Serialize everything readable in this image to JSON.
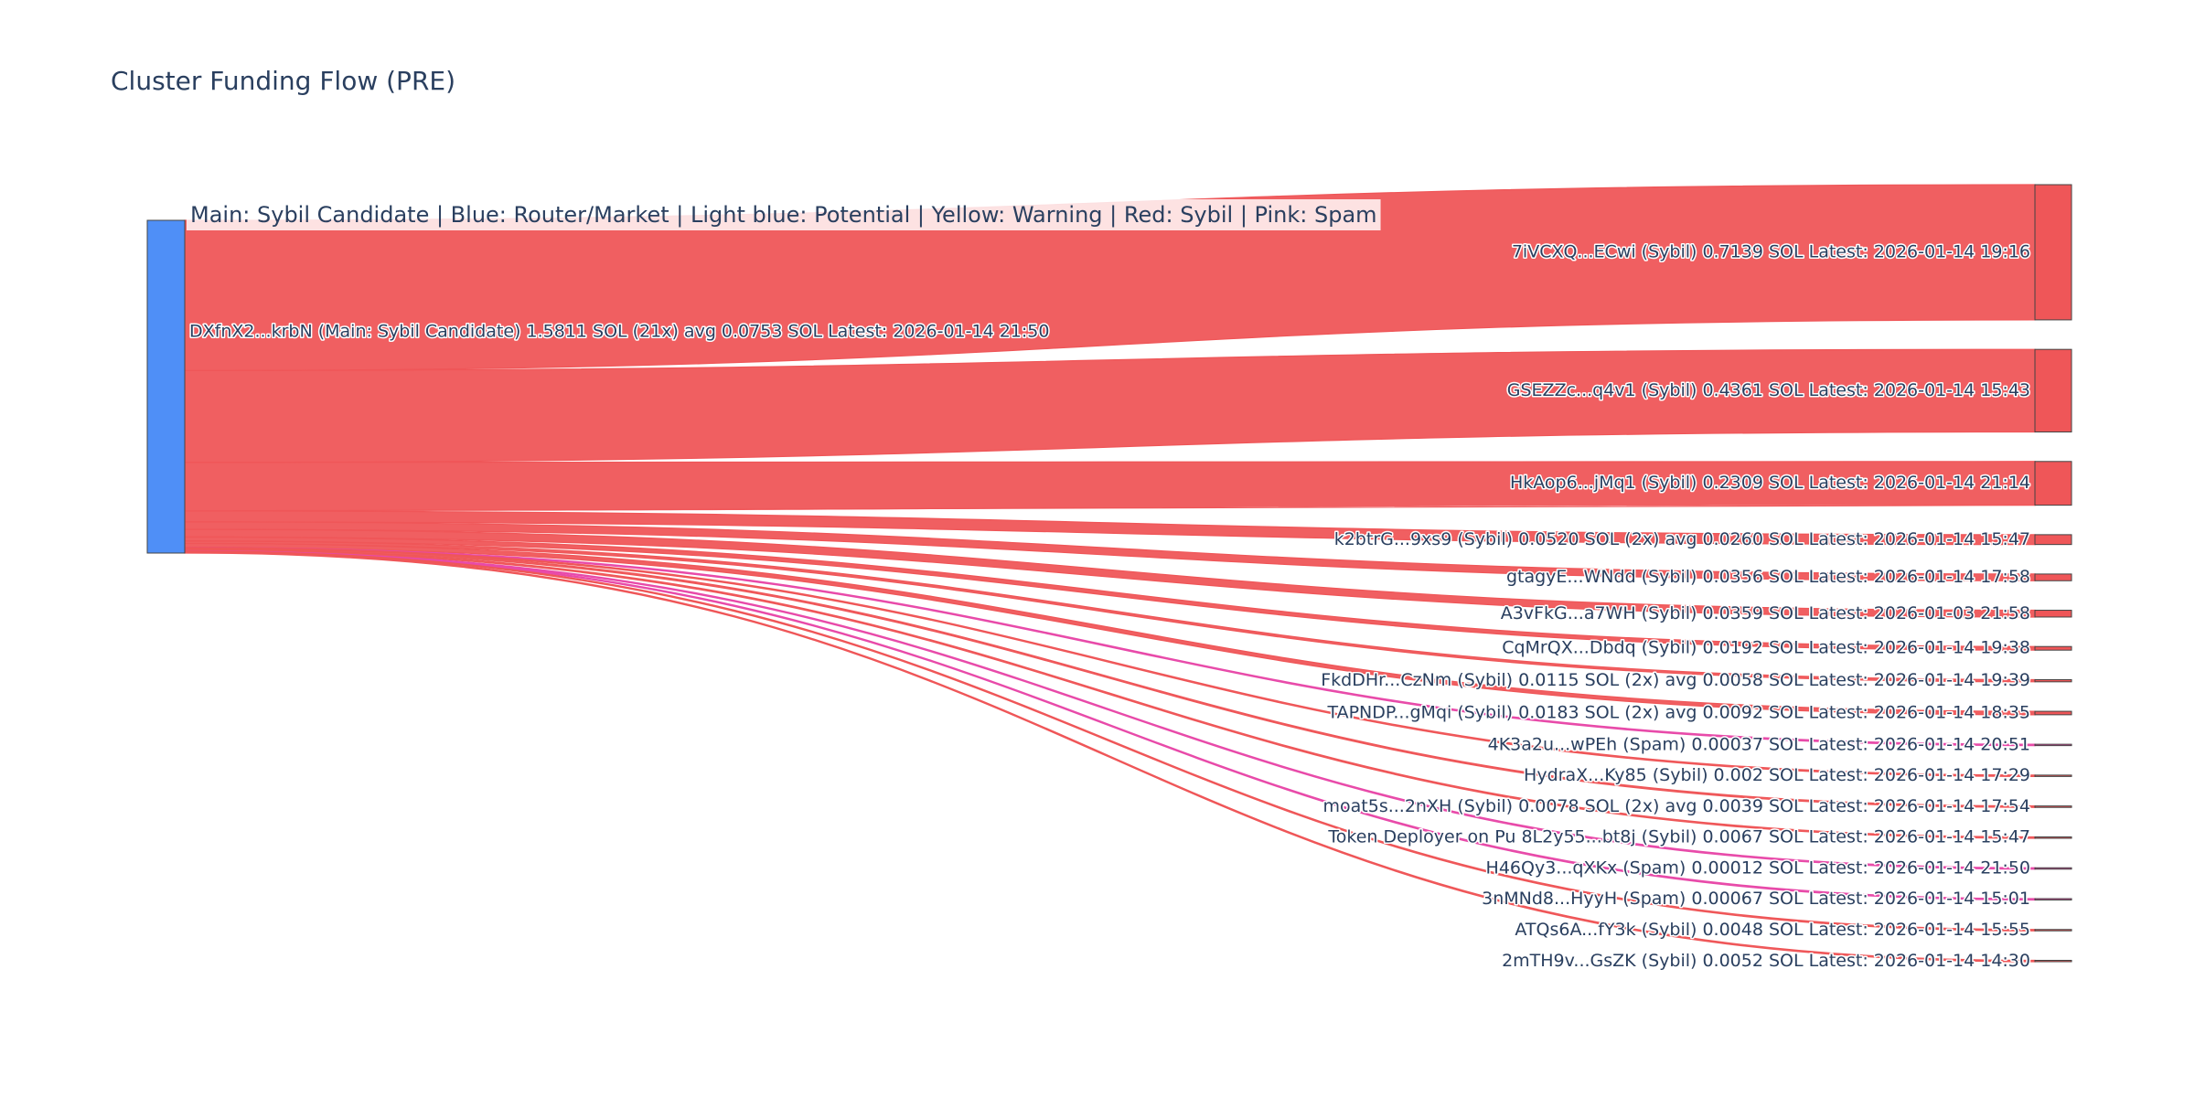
{
  "chart_data": {
    "type": "sankey",
    "title": "Cluster Funding Flow (PRE)",
    "annotation": "Main: Sybil Candidate  |  Blue: Router/Market | Light blue: Potential | Yellow: Warning | Red: Sybil | Pink: Spam",
    "source": {
      "label": "DXfnX2...krbN (Main: Sybil Candidate) 1.5811 SOL (21x) avg 0.0753 SOL Latest: 2026-01-14 21:50",
      "value": 1.5811,
      "color": "#4f8ff7"
    },
    "category_colors": {
      "Sybil": "#ef5658",
      "Spam": "#e84aa9"
    },
    "targets": [
      {
        "label": "7iVCXQ...ECwi (Sybil) 0.7139 SOL Latest: 2026-01-14 19:16",
        "value": 0.7139,
        "category": "Sybil"
      },
      {
        "label": "GSEZZc...q4v1 (Sybil) 0.4361 SOL Latest: 2026-01-14 15:43",
        "value": 0.4361,
        "category": "Sybil"
      },
      {
        "label": "HkAop6...jMq1 (Sybil) 0.2309 SOL Latest: 2026-01-14 21:14",
        "value": 0.2309,
        "category": "Sybil"
      },
      {
        "label": "k2btrG...9xs9 (Sybil) 0.0520 SOL (2x) avg 0.0260 SOL Latest: 2026-01-14 15:47",
        "value": 0.052,
        "category": "Sybil"
      },
      {
        "label": "gtagyE...WNdd (Sybil) 0.0356 SOL Latest: 2026-01-14 17:58",
        "value": 0.0356,
        "category": "Sybil"
      },
      {
        "label": "A3vFkG...a7WH (Sybil) 0.0359 SOL Latest: 2026-01-03 21:58",
        "value": 0.0359,
        "category": "Sybil"
      },
      {
        "label": "CqMrQX...Dbdq (Sybil) 0.0192 SOL Latest: 2026-01-14 19:38",
        "value": 0.0192,
        "category": "Sybil"
      },
      {
        "label": "FkdDHr...CzNm (Sybil) 0.0115 SOL (2x) avg 0.0058 SOL Latest: 2026-01-14 19:39",
        "value": 0.0115,
        "category": "Sybil"
      },
      {
        "label": "TAPNDP...gMqi (Sybil) 0.0183 SOL (2x) avg 0.0092 SOL Latest: 2026-01-14 18:35",
        "value": 0.0183,
        "category": "Sybil"
      },
      {
        "label": "4K3a2u...wPEh (Spam) 0.00037 SOL Latest: 2026-01-14 20:51",
        "value": 0.00037,
        "category": "Spam"
      },
      {
        "label": "HydraX...Ky85 (Sybil) 0.002 SOL Latest: 2026-01-14 17:29",
        "value": 0.002,
        "category": "Sybil"
      },
      {
        "label": "moat5s...2nXH (Sybil) 0.0078 SOL (2x) avg 0.0039 SOL Latest: 2026-01-14 17:54",
        "value": 0.0078,
        "category": "Sybil"
      },
      {
        "label": "Token Deployer on Pu 8L2y55...bt8j (Sybil) 0.0067 SOL Latest: 2026-01-14 15:47",
        "value": 0.0067,
        "category": "Sybil"
      },
      {
        "label": "H46Qy3...qXKx (Spam) 0.00012 SOL Latest: 2026-01-14 21:50",
        "value": 0.00012,
        "category": "Spam"
      },
      {
        "label": "3nMNd8...HyyH (Spam) 0.00067 SOL Latest: 2026-01-14 15:01",
        "value": 0.00067,
        "category": "Spam"
      },
      {
        "label": "ATQs6A...fY3k (Sybil) 0.0048 SOL Latest: 2026-01-14 15:55",
        "value": 0.0048,
        "category": "Sybil"
      },
      {
        "label": "2mTH9v...GsZK (Sybil) 0.0052 SOL Latest: 2026-01-14 14:30",
        "value": 0.0052,
        "category": "Sybil"
      }
    ]
  }
}
